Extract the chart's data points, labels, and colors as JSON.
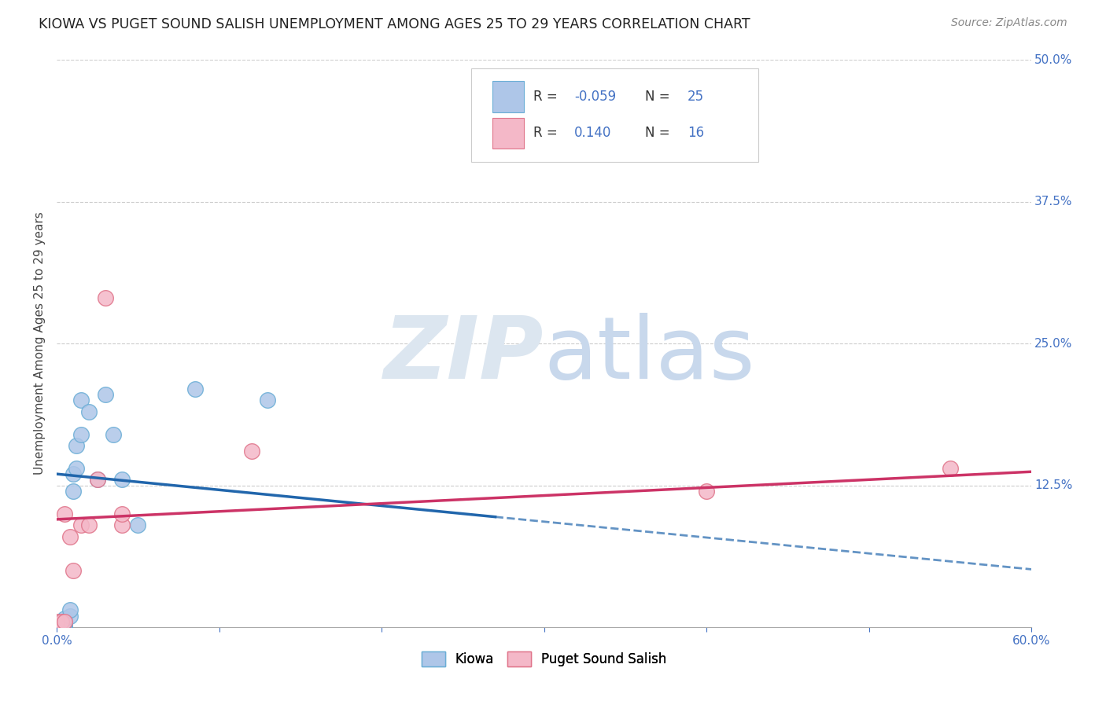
{
  "title": "KIOWA VS PUGET SOUND SALISH UNEMPLOYMENT AMONG AGES 25 TO 29 YEARS CORRELATION CHART",
  "source": "Source: ZipAtlas.com",
  "ylabel": "Unemployment Among Ages 25 to 29 years",
  "xlim": [
    0.0,
    0.6
  ],
  "ylim": [
    0.0,
    0.5
  ],
  "xticks": [
    0.0,
    0.1,
    0.2,
    0.3,
    0.4,
    0.5,
    0.6
  ],
  "yticks": [
    0.0,
    0.125,
    0.25,
    0.375,
    0.5
  ],
  "ytick_labels": [
    "",
    "12.5%",
    "25.0%",
    "37.5%",
    "50.0%"
  ],
  "xtick_labels": [
    "0.0%",
    "",
    "",
    "",
    "",
    "",
    "60.0%"
  ],
  "kiowa_color": "#aec6e8",
  "kiowa_edge_color": "#6baed6",
  "salish_color": "#f4b8c8",
  "salish_edge_color": "#e0748a",
  "kiowa_R": -0.059,
  "kiowa_N": 25,
  "salish_R": 0.14,
  "salish_N": 16,
  "kiowa_x": [
    0.0,
    0.0,
    0.0,
    0.005,
    0.005,
    0.005,
    0.005,
    0.005,
    0.008,
    0.008,
    0.01,
    0.01,
    0.012,
    0.012,
    0.015,
    0.015,
    0.02,
    0.025,
    0.03,
    0.035,
    0.04,
    0.05,
    0.085,
    0.13,
    0.27
  ],
  "kiowa_y": [
    0.0,
    0.002,
    0.003,
    0.0,
    0.001,
    0.003,
    0.005,
    0.008,
    0.01,
    0.015,
    0.12,
    0.135,
    0.14,
    0.16,
    0.17,
    0.2,
    0.19,
    0.13,
    0.205,
    0.17,
    0.13,
    0.09,
    0.21,
    0.2,
    0.47
  ],
  "salish_x": [
    0.0,
    0.0,
    0.003,
    0.005,
    0.005,
    0.008,
    0.01,
    0.015,
    0.02,
    0.025,
    0.03,
    0.04,
    0.04,
    0.12,
    0.4,
    0.55
  ],
  "salish_y": [
    0.002,
    0.005,
    0.005,
    0.005,
    0.1,
    0.08,
    0.05,
    0.09,
    0.09,
    0.13,
    0.29,
    0.09,
    0.1,
    0.155,
    0.12,
    0.14
  ],
  "kiowa_line_color": "#2166ac",
  "salish_line_color": "#cc3366",
  "kiowa_line_start": 0.0,
  "kiowa_line_end_solid": 0.27,
  "kiowa_line_end_dash": 0.6,
  "salish_line_start": 0.0,
  "salish_line_end": 0.6,
  "watermark_color": "#dce6f0",
  "background_color": "#ffffff",
  "grid_color": "#cccccc",
  "title_color": "#222222",
  "tick_color": "#4472c4",
  "axis_label_color": "#444444"
}
